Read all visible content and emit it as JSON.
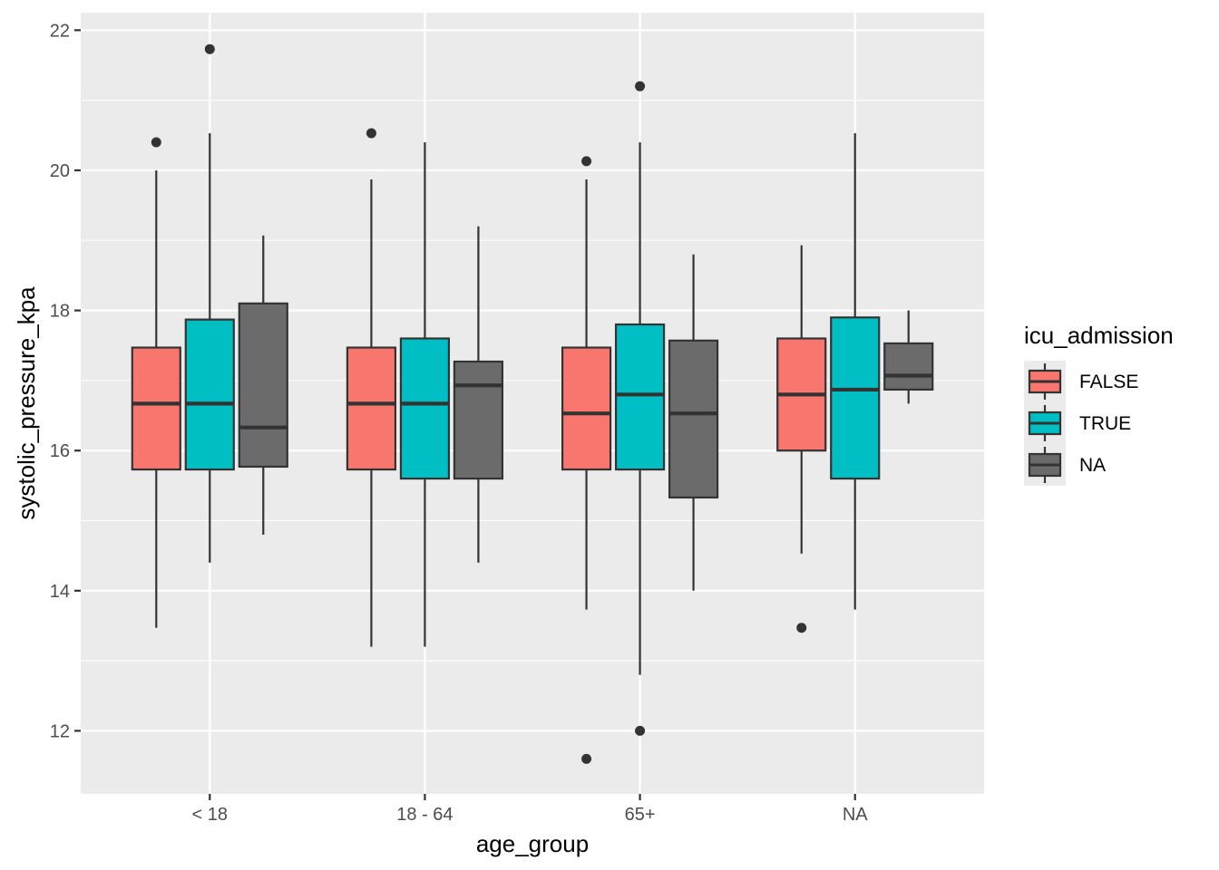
{
  "chart_data": {
    "type": "boxplot",
    "xlabel": "age_group",
    "ylabel": "systolic_pressure_kpa",
    "ylim": [
      11.1,
      22.25
    ],
    "yticks": [
      12,
      14,
      16,
      18,
      20,
      22
    ],
    "grid": true,
    "legend": {
      "title": "icu_admission",
      "placement": "right",
      "entries": [
        {
          "label": "FALSE",
          "color": "#F8766D"
        },
        {
          "label": "TRUE",
          "color": "#00BFC4"
        },
        {
          "label": "NA",
          "color": "#6B6B6B"
        }
      ]
    },
    "categories": [
      "< 18",
      "18 - 64",
      "65+",
      "NA"
    ],
    "groups": [
      {
        "category": "< 18",
        "boxes": [
          {
            "series": "FALSE",
            "whisker_low": 13.47,
            "q1": 15.73,
            "median": 16.67,
            "q3": 17.47,
            "whisker_high": 20.0,
            "outliers": [
              20.4
            ]
          },
          {
            "series": "TRUE",
            "whisker_low": 14.4,
            "q1": 15.73,
            "median": 16.67,
            "q3": 17.87,
            "whisker_high": 20.53,
            "outliers": [
              21.73
            ]
          },
          {
            "series": "NA",
            "whisker_low": 14.8,
            "q1": 15.77,
            "median": 16.33,
            "q3": 18.1,
            "whisker_high": 19.07,
            "outliers": []
          }
        ]
      },
      {
        "category": "18 - 64",
        "boxes": [
          {
            "series": "FALSE",
            "whisker_low": 13.2,
            "q1": 15.73,
            "median": 16.67,
            "q3": 17.47,
            "whisker_high": 19.87,
            "outliers": [
              20.53
            ]
          },
          {
            "series": "TRUE",
            "whisker_low": 13.2,
            "q1": 15.6,
            "median": 16.67,
            "q3": 17.6,
            "whisker_high": 20.4,
            "outliers": []
          },
          {
            "series": "NA",
            "whisker_low": 14.4,
            "q1": 15.6,
            "median": 16.93,
            "q3": 17.27,
            "whisker_high": 19.2,
            "outliers": []
          }
        ]
      },
      {
        "category": "65+",
        "boxes": [
          {
            "series": "FALSE",
            "whisker_low": 13.73,
            "q1": 15.73,
            "median": 16.53,
            "q3": 17.47,
            "whisker_high": 19.87,
            "outliers": [
              20.13,
              11.6
            ]
          },
          {
            "series": "TRUE",
            "whisker_low": 12.8,
            "q1": 15.73,
            "median": 16.8,
            "q3": 17.8,
            "whisker_high": 20.4,
            "outliers": [
              21.2,
              12.0
            ]
          },
          {
            "series": "NA",
            "whisker_low": 14.0,
            "q1": 15.33,
            "median": 16.53,
            "q3": 17.57,
            "whisker_high": 18.8,
            "outliers": []
          }
        ]
      },
      {
        "category": "NA",
        "boxes": [
          {
            "series": "FALSE",
            "whisker_low": 14.53,
            "q1": 16.0,
            "median": 16.8,
            "q3": 17.6,
            "whisker_high": 18.93,
            "outliers": [
              13.47
            ]
          },
          {
            "series": "TRUE",
            "whisker_low": 13.73,
            "q1": 15.6,
            "median": 16.87,
            "q3": 17.9,
            "whisker_high": 20.53,
            "outliers": []
          },
          {
            "series": "NA",
            "whisker_low": 16.67,
            "q1": 16.87,
            "median": 17.07,
            "q3": 17.53,
            "whisker_high": 18.0,
            "outliers": []
          }
        ]
      }
    ]
  }
}
